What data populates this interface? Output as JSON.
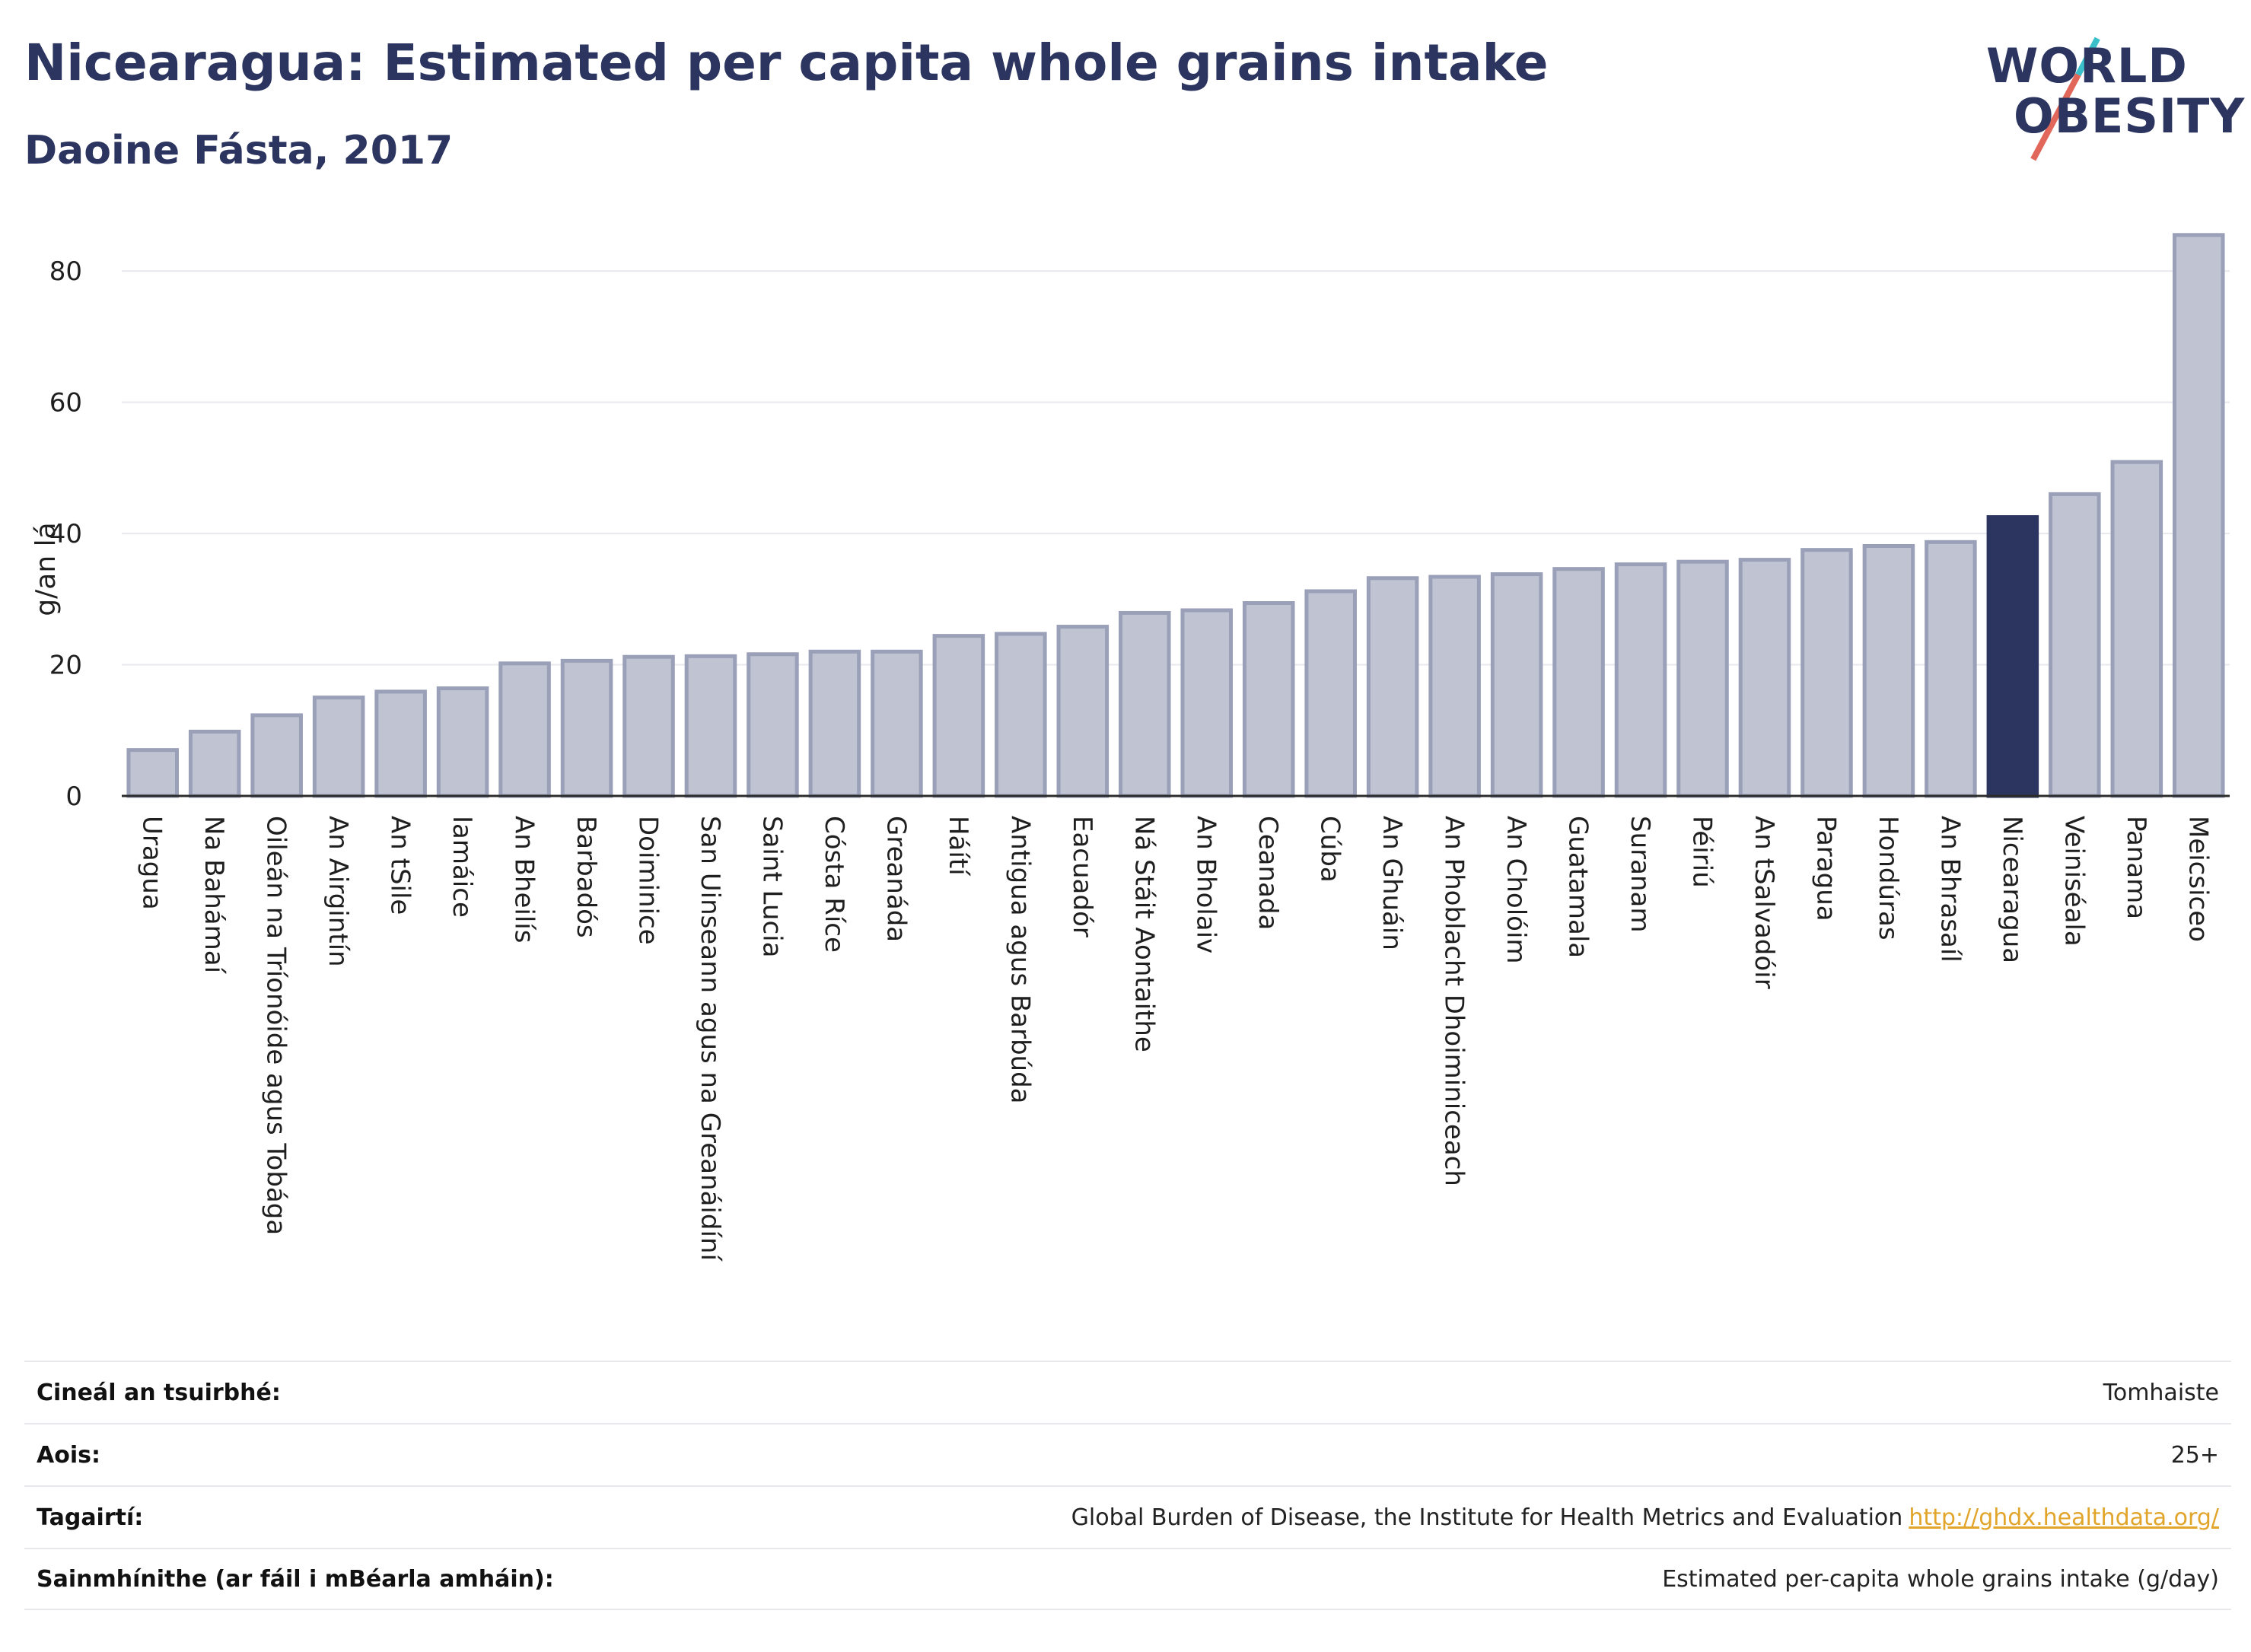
{
  "header": {
    "title": "Nicearagua: Estimated per capita whole grains intake",
    "subtitle": "Daoine Fásta, 2017"
  },
  "logo": {
    "line1": "WORLD",
    "line2": "OBESITY"
  },
  "colors": {
    "bar": "#bfc3d2",
    "bar_border": "#9aa0b8",
    "highlight": "#2b3560",
    "grid": "#e8e8ee",
    "axis_text": "#1f1f1f"
  },
  "chart_data": {
    "type": "bar",
    "title": "Nicearagua: Estimated per capita whole grains intake",
    "subtitle": "Daoine Fásta, 2017",
    "ylabel": "g/an lá",
    "ylim": [
      0,
      90
    ],
    "yticks": [
      0,
      20,
      40,
      60,
      80
    ],
    "grid": true,
    "highlight": "Nicearagua",
    "categories": [
      "Uragua",
      "Na Bahámaí",
      "Oileán na Tríonóide agus Tobága",
      "An Airgintín",
      "An tSile",
      "Iamáice",
      "An Bheilís",
      "Barbadós",
      "Doiminice",
      "San Uinseann agus na Greanáidíní",
      "Saint Lucia",
      "Cósta Ríce",
      "Greanáda",
      "Háítí",
      "Antigua agus Barbúda",
      "Eacuadór",
      "Ná Stáit Aontaithe",
      "An Bholaiv",
      "Ceanada",
      "Cúba",
      "An Ghuáin",
      "An Phoblacht Dhoiminiceach",
      "An Cholóim",
      "Guatamala",
      "Suranam",
      "Péiriú",
      "An tSalvadóir",
      "Paragua",
      "Hondúras",
      "An Bhrasaíl",
      "Nicearagua",
      "Veiniséala",
      "Panama",
      "Meicsiceo"
    ],
    "values": [
      7.0,
      9.8,
      12.3,
      15.0,
      15.9,
      16.4,
      20.2,
      20.6,
      21.2,
      21.3,
      21.6,
      22.0,
      22.0,
      24.4,
      24.7,
      25.8,
      27.9,
      28.3,
      29.4,
      31.2,
      33.2,
      33.4,
      33.8,
      34.6,
      35.3,
      35.7,
      36.0,
      37.5,
      38.1,
      38.7,
      42.5,
      46.0,
      50.9,
      85.5
    ]
  },
  "footer": {
    "rows": [
      {
        "label": "Cineál an tsuirbhé:",
        "value": "Tomhaiste"
      },
      {
        "label": "Aois:",
        "value": "25+"
      },
      {
        "label": "Tagairtí:",
        "value": "Global Burden of Disease, the Institute for Health Metrics and Evaluation",
        "link": "http://ghdx.healthdata.org/"
      },
      {
        "label": "Sainmhínithe (ar fáil i mBéarla amháin):",
        "value": "Estimated per-capita whole grains intake (g/day)"
      }
    ]
  }
}
